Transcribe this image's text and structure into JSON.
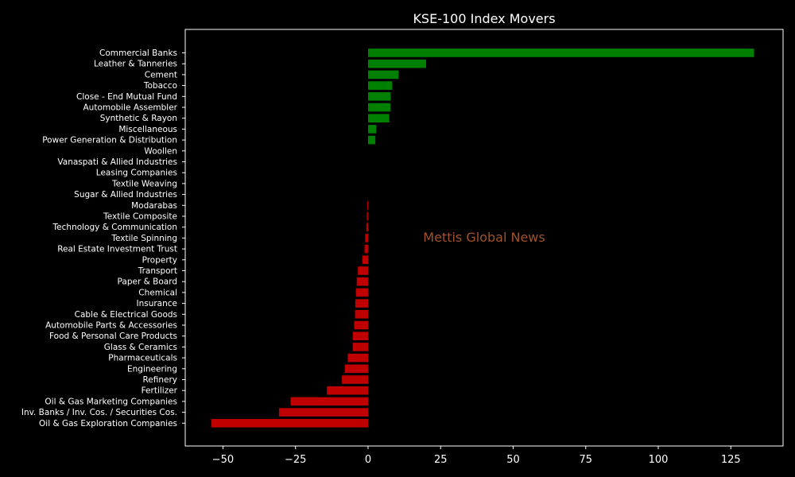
{
  "chart_data": {
    "type": "bar",
    "orientation": "horizontal",
    "title": "KSE-100 Index Movers",
    "xlabel": "",
    "ylabel": "",
    "xlim": [
      -63,
      143
    ],
    "xticks": [
      -50,
      -25,
      0,
      25,
      50,
      75,
      100,
      125
    ],
    "xtick_labels": [
      "−50",
      "−25",
      "0",
      "25",
      "50",
      "75",
      "100",
      "125"
    ],
    "grid": false,
    "legend": "none",
    "colors": {
      "positive": "#008000",
      "negative": "#c00000",
      "background": "#000000",
      "axes": "#ffffff",
      "watermark": "#a0522d"
    },
    "categories": [
      "Commercial Banks",
      "Leather & Tanneries",
      "Cement",
      "Tobacco",
      "Close - End Mutual Fund",
      "Automobile Assembler",
      "Synthetic & Rayon",
      "Miscellaneous",
      "Power Generation & Distribution",
      "Woollen",
      "Vanaspati & Allied Industries",
      "Leasing Companies",
      "Textile Weaving",
      "Sugar & Allied Industries",
      "Modarabas",
      "Textile Composite",
      "Technology & Communication",
      "Textile Spinning",
      "Real Estate Investment Trust",
      "Property",
      "Transport",
      "Paper & Board",
      "Chemical",
      "Insurance",
      "Cable & Electrical Goods",
      "Automobile Parts & Accessories",
      "Food & Personal Care Products",
      "Glass & Ceramics",
      "Pharmaceuticals",
      "Engineering",
      "Refinery",
      "Fertilizer",
      "Oil & Gas Marketing Companies",
      "Inv. Banks / Inv. Cos. / Securities Cos.",
      "Oil & Gas Exploration Companies"
    ],
    "values": [
      133,
      20,
      10.5,
      8.3,
      7.8,
      7.7,
      7.3,
      2.8,
      2.5,
      0,
      0,
      0,
      0,
      0,
      -0.3,
      -0.4,
      -0.6,
      -1.0,
      -1.2,
      -2.0,
      -3.5,
      -3.9,
      -4.2,
      -4.4,
      -4.5,
      -4.8,
      -5.3,
      -5.3,
      -7.0,
      -8.0,
      -9.0,
      -14.2,
      -26.7,
      -30.7,
      -54.0
    ]
  },
  "watermark": "Mettis Global News"
}
